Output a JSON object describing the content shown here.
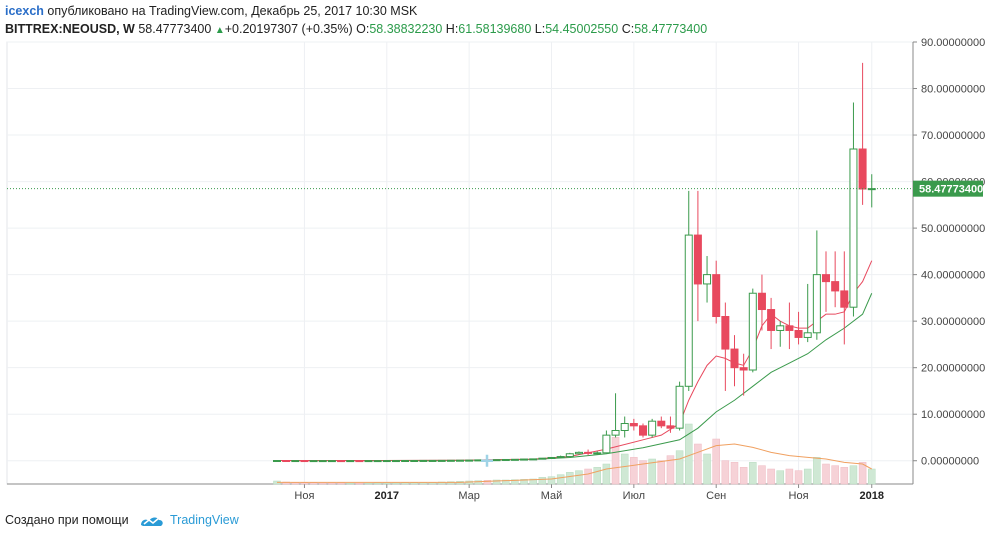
{
  "header": {
    "user": "icexch",
    "published_text": "опубликовано на TradingView.com, Декабрь 25, 2017 10:30 MSK",
    "symbol": "BITTREX:NEOUSD, W",
    "last": "58.47773400",
    "change": "+0.20197307 (+0.35%)",
    "o_label": "O:",
    "o_value": "58.38832230",
    "h_label": "H:",
    "h_value": "61.58139680",
    "l_label": "L:",
    "l_value": "54.45002550",
    "c_label": "C:",
    "c_value": "58.47773400"
  },
  "footer": {
    "created_with": "Создано при помощи",
    "brand": "TradingView"
  },
  "colors": {
    "up": "#3a9a4c",
    "down": "#e8495e",
    "grid": "#eef0f3",
    "ma_fast": "#e8495e",
    "ma_slow": "#3a9a4c",
    "vol_ma": "#f0a060",
    "price_tag": "#3a9a4c"
  },
  "chart_data": {
    "type": "candlestick",
    "ylim": [
      -5,
      90
    ],
    "y_ticks": [
      "90.00000000",
      "80.00000000",
      "70.00000000",
      "60.00000000",
      "50.00000000",
      "40.00000000",
      "30.00000000",
      "20.00000000",
      "10.00000000",
      "0.00000000"
    ],
    "y_tick_values": [
      90,
      80,
      70,
      60,
      50,
      40,
      30,
      20,
      10,
      0
    ],
    "last_price_label": "58.47773400",
    "last_price": 58.4777,
    "x_ticks": [
      {
        "label": "Ноя",
        "week": 3,
        "bold": false
      },
      {
        "label": "2017",
        "week": 12,
        "bold": true
      },
      {
        "label": "Мар",
        "week": 21,
        "bold": false
      },
      {
        "label": "Май",
        "week": 30,
        "bold": false
      },
      {
        "label": "Июл",
        "week": 39,
        "bold": false
      },
      {
        "label": "Сен",
        "week": 48,
        "bold": false
      },
      {
        "label": "Ноя",
        "week": 57,
        "bold": false
      },
      {
        "label": "2018",
        "week": 65,
        "bold": true
      }
    ],
    "candles": [
      {
        "w": 0,
        "o": 0.05,
        "h": 0.06,
        "l": 0.04,
        "c": 0.05
      },
      {
        "w": 1,
        "o": 0.05,
        "h": 0.05,
        "l": 0.03,
        "c": 0.04
      },
      {
        "w": 2,
        "o": 0.04,
        "h": 0.05,
        "l": 0.03,
        "c": 0.04
      },
      {
        "w": 3,
        "o": 0.04,
        "h": 0.05,
        "l": 0.03,
        "c": 0.03
      },
      {
        "w": 4,
        "o": 0.03,
        "h": 0.04,
        "l": 0.03,
        "c": 0.03
      },
      {
        "w": 5,
        "o": 0.03,
        "h": 0.04,
        "l": 0.02,
        "c": 0.03
      },
      {
        "w": 6,
        "o": 0.03,
        "h": 0.04,
        "l": 0.02,
        "c": 0.03
      },
      {
        "w": 7,
        "o": 0.03,
        "h": 0.03,
        "l": 0.02,
        "c": 0.02
      },
      {
        "w": 8,
        "o": 0.02,
        "h": 0.03,
        "l": 0.02,
        "c": 0.03
      },
      {
        "w": 9,
        "o": 0.03,
        "h": 0.03,
        "l": 0.02,
        "c": 0.02
      },
      {
        "w": 10,
        "o": 0.02,
        "h": 0.03,
        "l": 0.02,
        "c": 0.03
      },
      {
        "w": 11,
        "o": 0.03,
        "h": 0.04,
        "l": 0.02,
        "c": 0.03
      },
      {
        "w": 12,
        "o": 0.03,
        "h": 0.04,
        "l": 0.03,
        "c": 0.04
      },
      {
        "w": 13,
        "o": 0.04,
        "h": 0.05,
        "l": 0.03,
        "c": 0.04
      },
      {
        "w": 14,
        "o": 0.04,
        "h": 0.05,
        "l": 0.03,
        "c": 0.05
      },
      {
        "w": 15,
        "o": 0.05,
        "h": 0.06,
        "l": 0.04,
        "c": 0.05
      },
      {
        "w": 16,
        "o": 0.05,
        "h": 0.07,
        "l": 0.04,
        "c": 0.06
      },
      {
        "w": 17,
        "o": 0.06,
        "h": 0.07,
        "l": 0.05,
        "c": 0.06
      },
      {
        "w": 18,
        "o": 0.06,
        "h": 0.08,
        "l": 0.05,
        "c": 0.07
      },
      {
        "w": 19,
        "o": 0.07,
        "h": 0.1,
        "l": 0.06,
        "c": 0.09
      },
      {
        "w": 20,
        "o": 0.09,
        "h": 0.12,
        "l": 0.08,
        "c": 0.11
      },
      {
        "w": 21,
        "o": 0.11,
        "h": 0.15,
        "l": 0.1,
        "c": 0.13
      },
      {
        "w": 22,
        "o": 0.13,
        "h": 0.2,
        "l": 0.12,
        "c": 0.18
      },
      {
        "w": 23,
        "o": 0.18,
        "h": 0.22,
        "l": 0.15,
        "c": 0.17
      },
      {
        "w": 24,
        "o": 0.17,
        "h": 0.25,
        "l": 0.16,
        "c": 0.23
      },
      {
        "w": 25,
        "o": 0.23,
        "h": 0.3,
        "l": 0.2,
        "c": 0.27
      },
      {
        "w": 26,
        "o": 0.27,
        "h": 0.35,
        "l": 0.24,
        "c": 0.3
      },
      {
        "w": 27,
        "o": 0.3,
        "h": 0.4,
        "l": 0.26,
        "c": 0.36
      },
      {
        "w": 28,
        "o": 0.36,
        "h": 0.45,
        "l": 0.3,
        "c": 0.4
      },
      {
        "w": 29,
        "o": 0.4,
        "h": 0.6,
        "l": 0.36,
        "c": 0.55
      },
      {
        "w": 30,
        "o": 0.55,
        "h": 0.75,
        "l": 0.5,
        "c": 0.7
      },
      {
        "w": 31,
        "o": 0.7,
        "h": 1.1,
        "l": 0.6,
        "c": 0.9
      },
      {
        "w": 32,
        "o": 0.9,
        "h": 1.7,
        "l": 0.8,
        "c": 1.5
      },
      {
        "w": 33,
        "o": 1.5,
        "h": 2.0,
        "l": 1.3,
        "c": 1.8
      },
      {
        "w": 34,
        "o": 1.8,
        "h": 2.4,
        "l": 1.2,
        "c": 1.6
      },
      {
        "w": 35,
        "o": 1.6,
        "h": 2.0,
        "l": 1.3,
        "c": 1.7
      },
      {
        "w": 36,
        "o": 1.7,
        "h": 6.5,
        "l": 1.6,
        "c": 5.5
      },
      {
        "w": 37,
        "o": 5.5,
        "h": 14.5,
        "l": 5.0,
        "c": 6.5
      },
      {
        "w": 38,
        "o": 6.5,
        "h": 9.5,
        "l": 5.0,
        "c": 8.0
      },
      {
        "w": 39,
        "o": 8.0,
        "h": 9.0,
        "l": 6.5,
        "c": 7.5
      },
      {
        "w": 40,
        "o": 7.5,
        "h": 8.0,
        "l": 5.0,
        "c": 5.5
      },
      {
        "w": 41,
        "o": 5.5,
        "h": 9.0,
        "l": 5.0,
        "c": 8.5
      },
      {
        "w": 42,
        "o": 8.5,
        "h": 9.5,
        "l": 7.0,
        "c": 7.5
      },
      {
        "w": 43,
        "o": 7.5,
        "h": 9.5,
        "l": 6.0,
        "c": 7.0
      },
      {
        "w": 44,
        "o": 7.0,
        "h": 17.0,
        "l": 6.5,
        "c": 16.0
      },
      {
        "w": 45,
        "o": 16.0,
        "h": 58.0,
        "l": 15.0,
        "c": 48.5
      },
      {
        "w": 46,
        "o": 48.5,
        "h": 58.0,
        "l": 30.0,
        "c": 38.0
      },
      {
        "w": 47,
        "o": 38.0,
        "h": 44.0,
        "l": 34.0,
        "c": 40.0
      },
      {
        "w": 48,
        "o": 40.0,
        "h": 43.0,
        "l": 29.5,
        "c": 31.0
      },
      {
        "w": 49,
        "o": 31.0,
        "h": 34.0,
        "l": 15.0,
        "c": 24.0
      },
      {
        "w": 50,
        "o": 24.0,
        "h": 27.0,
        "l": 16.0,
        "c": 20.0
      },
      {
        "w": 51,
        "o": 20.0,
        "h": 23.0,
        "l": 14.0,
        "c": 19.5
      },
      {
        "w": 52,
        "o": 19.5,
        "h": 37.0,
        "l": 19.0,
        "c": 36.0
      },
      {
        "w": 53,
        "o": 36.0,
        "h": 40.0,
        "l": 28.0,
        "c": 32.5
      },
      {
        "w": 54,
        "o": 32.5,
        "h": 35.0,
        "l": 24.0,
        "c": 28.0
      },
      {
        "w": 55,
        "o": 28.0,
        "h": 30.0,
        "l": 24.5,
        "c": 29.0
      },
      {
        "w": 56,
        "o": 29.0,
        "h": 34.0,
        "l": 24.0,
        "c": 28.0
      },
      {
        "w": 57,
        "o": 28.0,
        "h": 32.0,
        "l": 25.0,
        "c": 26.5
      },
      {
        "w": 58,
        "o": 26.5,
        "h": 38.0,
        "l": 25.5,
        "c": 27.5
      },
      {
        "w": 59,
        "o": 27.5,
        "h": 49.5,
        "l": 26.0,
        "c": 40.0
      },
      {
        "w": 60,
        "o": 40.0,
        "h": 45.0,
        "l": 32.0,
        "c": 38.5
      },
      {
        "w": 61,
        "o": 38.5,
        "h": 45.0,
        "l": 33.0,
        "c": 36.5
      },
      {
        "w": 62,
        "o": 36.5,
        "h": 45.0,
        "l": 25.0,
        "c": 33.0
      },
      {
        "w": 63,
        "o": 33.0,
        "h": 77.0,
        "l": 31.0,
        "c": 67.0
      },
      {
        "w": 64,
        "o": 67.0,
        "h": 85.5,
        "l": 55.0,
        "c": 58.4
      },
      {
        "w": 65,
        "o": 58.39,
        "h": 61.58,
        "l": 54.45,
        "c": 58.48
      }
    ],
    "ma_fast": [
      [
        0,
        0.05
      ],
      [
        10,
        0.03
      ],
      [
        20,
        0.1
      ],
      [
        28,
        0.35
      ],
      [
        32,
        0.9
      ],
      [
        36,
        2.5
      ],
      [
        40,
        4.5
      ],
      [
        42,
        5.5
      ],
      [
        44,
        8.0
      ],
      [
        45,
        13.0
      ],
      [
        46,
        17.0
      ],
      [
        47,
        20.5
      ],
      [
        48,
        22.5
      ],
      [
        49,
        22.0
      ],
      [
        50,
        21.0
      ],
      [
        51,
        20.5
      ],
      [
        52,
        24.0
      ],
      [
        53,
        29.0
      ],
      [
        54,
        31.5
      ],
      [
        55,
        30.0
      ],
      [
        56,
        29.0
      ],
      [
        57,
        28.5
      ],
      [
        58,
        28.5
      ],
      [
        59,
        30.0
      ],
      [
        60,
        31.5
      ],
      [
        61,
        31.5
      ],
      [
        62,
        32.0
      ],
      [
        63,
        36.0
      ],
      [
        64,
        38.5
      ],
      [
        65,
        43.0
      ]
    ],
    "ma_slow": [
      [
        0,
        0.05
      ],
      [
        10,
        0.04
      ],
      [
        20,
        0.08
      ],
      [
        28,
        0.3
      ],
      [
        32,
        0.7
      ],
      [
        36,
        1.5
      ],
      [
        40,
        2.8
      ],
      [
        44,
        4.5
      ],
      [
        46,
        7.0
      ],
      [
        48,
        10.5
      ],
      [
        50,
        13.0
      ],
      [
        52,
        16.0
      ],
      [
        54,
        19.0
      ],
      [
        56,
        21.0
      ],
      [
        58,
        23.0
      ],
      [
        60,
        26.0
      ],
      [
        62,
        28.5
      ],
      [
        64,
        31.5
      ],
      [
        65,
        36.0
      ]
    ],
    "volume": [
      0.9,
      0.6,
      0.5,
      0.4,
      0.4,
      0.3,
      0.3,
      0.3,
      0.2,
      0.2,
      0.2,
      0.3,
      0.3,
      0.3,
      0.4,
      0.4,
      0.5,
      0.5,
      0.6,
      0.7,
      0.8,
      0.9,
      1.0,
      1.1,
      1.2,
      1.2,
      1.3,
      1.4,
      1.5,
      2.0,
      2.2,
      2.8,
      3.5,
      4.0,
      4.5,
      5.0,
      6.0,
      14.0,
      9.0,
      8.0,
      7.0,
      7.5,
      7.0,
      8.5,
      10.0,
      18.0,
      12.0,
      9.0,
      13.5,
      7.0,
      6.5,
      5.0,
      6.5,
      5.5,
      4.5,
      4.0,
      4.5,
      4.0,
      4.5,
      8.0,
      6.0,
      5.5,
      5.0,
      5.5,
      6.5,
      4.5
    ],
    "volume_up": [
      true,
      false,
      false,
      false,
      false,
      false,
      false,
      false,
      true,
      false,
      true,
      true,
      true,
      true,
      true,
      true,
      true,
      true,
      true,
      true,
      true,
      true,
      true,
      false,
      true,
      true,
      true,
      true,
      true,
      true,
      true,
      true,
      true,
      true,
      false,
      true,
      true,
      false,
      true,
      false,
      false,
      true,
      false,
      false,
      true,
      true,
      false,
      true,
      false,
      false,
      false,
      false,
      true,
      false,
      false,
      true,
      false,
      false,
      true,
      true,
      false,
      false,
      false,
      true,
      false,
      true
    ],
    "vol_ma": [
      [
        0,
        0.5
      ],
      [
        20,
        0.5
      ],
      [
        30,
        1.5
      ],
      [
        34,
        3.0
      ],
      [
        36,
        4.5
      ],
      [
        40,
        6.0
      ],
      [
        44,
        7.5
      ],
      [
        46,
        9.5
      ],
      [
        48,
        11.5
      ],
      [
        50,
        12.0
      ],
      [
        52,
        11.0
      ],
      [
        54,
        9.5
      ],
      [
        56,
        8.5
      ],
      [
        58,
        8.0
      ],
      [
        60,
        7.5
      ],
      [
        62,
        6.5
      ],
      [
        64,
        6.0
      ],
      [
        65,
        4.5
      ]
    ]
  }
}
